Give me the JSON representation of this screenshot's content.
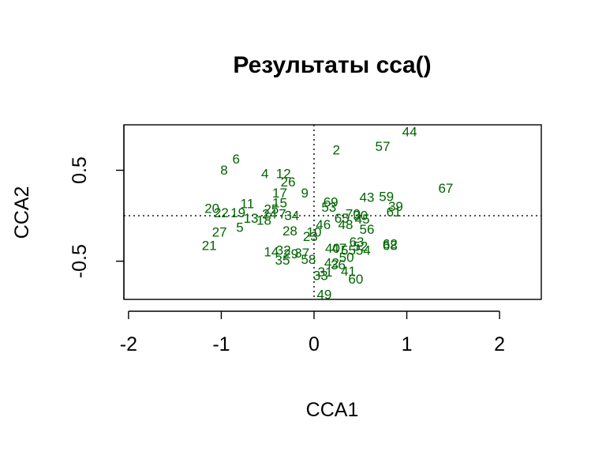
{
  "chart_data": {
    "type": "scatter",
    "title": "Результаты cca()",
    "xlabel": "CCA1",
    "ylabel": "CCA2",
    "xlim": [
      -2.05,
      2.45
    ],
    "ylim": [
      -0.92,
      1.0
    ],
    "x_ticks": [
      -2,
      -1,
      0,
      1,
      2
    ],
    "x_tick_labels": [
      "-2",
      "-1",
      "0",
      "1",
      "2"
    ],
    "y_ticks": [
      -0.5,
      0.5
    ],
    "y_tick_labels": [
      "-0.5",
      "0.5"
    ],
    "zero_lines": true,
    "label_color": "#006400",
    "points": [
      {
        "label": "44",
        "x": 1.03,
        "y": 0.92
      },
      {
        "label": "57",
        "x": 0.74,
        "y": 0.76
      },
      {
        "label": "2",
        "x": 0.24,
        "y": 0.72
      },
      {
        "label": "6",
        "x": -0.84,
        "y": 0.62
      },
      {
        "label": "8",
        "x": -0.97,
        "y": 0.5
      },
      {
        "label": "4",
        "x": -0.53,
        "y": 0.46
      },
      {
        "label": "12",
        "x": -0.33,
        "y": 0.46
      },
      {
        "label": "26",
        "x": -0.28,
        "y": 0.37
      },
      {
        "label": "67",
        "x": 1.42,
        "y": 0.3
      },
      {
        "label": "17",
        "x": -0.37,
        "y": 0.25
      },
      {
        "label": "9",
        "x": -0.1,
        "y": 0.25
      },
      {
        "label": "43",
        "x": 0.57,
        "y": 0.2
      },
      {
        "label": "59",
        "x": 0.78,
        "y": 0.21
      },
      {
        "label": "15",
        "x": -0.37,
        "y": 0.14
      },
      {
        "label": "69",
        "x": 0.18,
        "y": 0.15
      },
      {
        "label": "39",
        "x": 0.88,
        "y": 0.1
      },
      {
        "label": "11",
        "x": -0.72,
        "y": 0.13
      },
      {
        "label": "20",
        "x": -1.1,
        "y": 0.08
      },
      {
        "label": "25",
        "x": -0.46,
        "y": 0.07
      },
      {
        "label": "53",
        "x": 0.16,
        "y": 0.09
      },
      {
        "label": "61",
        "x": 0.86,
        "y": 0.04
      },
      {
        "label": "22",
        "x": -1.0,
        "y": 0.03
      },
      {
        "label": "19",
        "x": -0.82,
        "y": 0.03
      },
      {
        "label": "24",
        "x": -0.48,
        "y": 0.02
      },
      {
        "label": "7",
        "x": -0.34,
        "y": 0.02
      },
      {
        "label": "34",
        "x": -0.24,
        "y": 0.0
      },
      {
        "label": "70",
        "x": 0.42,
        "y": 0.02
      },
      {
        "label": "30",
        "x": 0.5,
        "y": 0.0
      },
      {
        "label": "13",
        "x": -0.68,
        "y": -0.03
      },
      {
        "label": "18",
        "x": -0.54,
        "y": -0.05
      },
      {
        "label": "65",
        "x": 0.3,
        "y": -0.03
      },
      {
        "label": "45",
        "x": 0.52,
        "y": -0.04
      },
      {
        "label": "5",
        "x": -0.8,
        "y": -0.13
      },
      {
        "label": "46",
        "x": 0.1,
        "y": -0.1
      },
      {
        "label": "48",
        "x": 0.34,
        "y": -0.1
      },
      {
        "label": "27",
        "x": -1.02,
        "y": -0.18
      },
      {
        "label": "28",
        "x": -0.26,
        "y": -0.17
      },
      {
        "label": "56",
        "x": 0.57,
        "y": -0.15
      },
      {
        "label": "10",
        "x": 0.0,
        "y": -0.18
      },
      {
        "label": "23",
        "x": -0.04,
        "y": -0.23
      },
      {
        "label": "21",
        "x": -1.13,
        "y": -0.33
      },
      {
        "label": "63",
        "x": 0.46,
        "y": -0.29
      },
      {
        "label": "62",
        "x": 0.82,
        "y": -0.31
      },
      {
        "label": "68",
        "x": 0.82,
        "y": -0.33
      },
      {
        "label": "52",
        "x": 0.5,
        "y": -0.34
      },
      {
        "label": "40",
        "x": 0.2,
        "y": -0.36
      },
      {
        "label": "47",
        "x": 0.27,
        "y": -0.36
      },
      {
        "label": "55",
        "x": 0.37,
        "y": -0.38
      },
      {
        "label": "54",
        "x": 0.53,
        "y": -0.38
      },
      {
        "label": "32",
        "x": -0.33,
        "y": -0.38
      },
      {
        "label": "14",
        "x": -0.46,
        "y": -0.4
      },
      {
        "label": "37",
        "x": -0.13,
        "y": -0.41
      },
      {
        "label": "29",
        "x": -0.25,
        "y": -0.42
      },
      {
        "label": "50",
        "x": 0.35,
        "y": -0.46
      },
      {
        "label": "35",
        "x": -0.34,
        "y": -0.49
      },
      {
        "label": "58",
        "x": -0.06,
        "y": -0.48
      },
      {
        "label": "42",
        "x": 0.19,
        "y": -0.52
      },
      {
        "label": "36",
        "x": 0.26,
        "y": -0.54
      },
      {
        "label": "31",
        "x": 0.12,
        "y": -0.62
      },
      {
        "label": "41",
        "x": 0.37,
        "y": -0.61
      },
      {
        "label": "33",
        "x": 0.07,
        "y": -0.66
      },
      {
        "label": "60",
        "x": 0.45,
        "y": -0.7
      },
      {
        "label": "49",
        "x": 0.11,
        "y": -0.87
      }
    ]
  }
}
